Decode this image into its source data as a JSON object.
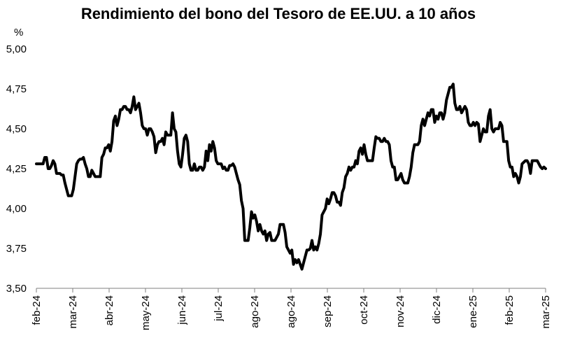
{
  "chart_data": {
    "type": "line",
    "title": "Rendimiento del bono del Tesoro de EE.UU. a 10 años",
    "ylabel": "%",
    "xlabel": "",
    "ylim": [
      3.5,
      5.0
    ],
    "yticks": [
      "3,50",
      "3,75",
      "4,00",
      "4,25",
      "4,50",
      "4,75",
      "5,00"
    ],
    "ytick_values": [
      3.5,
      3.75,
      4.0,
      4.25,
      4.5,
      4.75,
      5.0
    ],
    "x_tick_labels": [
      "feb-24",
      "mar-24",
      "abr-24",
      "may-24",
      "jun-24",
      "jul-24",
      "ago-24",
      "ago-24",
      "sep-24",
      "oct-24",
      "nov-24",
      "dic-24",
      "ene-25",
      "feb-25",
      "mar-25"
    ],
    "grid": false,
    "legend": "none",
    "line_color": "#000000",
    "series": [
      {
        "values": [
          4.28,
          4.28,
          4.28,
          4.28,
          4.28,
          4.32,
          4.32,
          4.25,
          4.25,
          4.27,
          4.3,
          4.28,
          4.22,
          4.22,
          4.22,
          4.21,
          4.21,
          4.16,
          4.12,
          4.08,
          4.08,
          4.08,
          4.12,
          4.2,
          4.28,
          4.3,
          4.31,
          4.31,
          4.32,
          4.28,
          4.25,
          4.2,
          4.2,
          4.24,
          4.22,
          4.2,
          4.2,
          4.2,
          4.2,
          4.32,
          4.34,
          4.38,
          4.38,
          4.4,
          4.36,
          4.42,
          4.55,
          4.58,
          4.52,
          4.56,
          4.62,
          4.62,
          4.64,
          4.64,
          4.62,
          4.62,
          4.6,
          4.64,
          4.7,
          4.62,
          4.64,
          4.66,
          4.6,
          4.52,
          4.5,
          4.5,
          4.46,
          4.5,
          4.5,
          4.48,
          4.45,
          4.35,
          4.4,
          4.42,
          4.42,
          4.44,
          4.4,
          4.48,
          4.46,
          4.46,
          4.46,
          4.6,
          4.5,
          4.48,
          4.36,
          4.28,
          4.26,
          4.34,
          4.44,
          4.46,
          4.42,
          4.28,
          4.24,
          4.24,
          4.28,
          4.24,
          4.24,
          4.26,
          4.26,
          4.24,
          4.26,
          4.36,
          4.3,
          4.4,
          4.36,
          4.42,
          4.38,
          4.3,
          4.28,
          4.28,
          4.28,
          4.25,
          4.26,
          4.24,
          4.24,
          4.27,
          4.27,
          4.28,
          4.26,
          4.22,
          4.18,
          4.15,
          4.05,
          4.0,
          3.8,
          3.8,
          3.8,
          3.88,
          3.98,
          3.94,
          3.96,
          3.92,
          3.86,
          3.9,
          3.86,
          3.84,
          3.86,
          3.8,
          3.84,
          3.85,
          3.8,
          3.8,
          3.8,
          3.82,
          3.84,
          3.9,
          3.9,
          3.9,
          3.85,
          3.76,
          3.74,
          3.72,
          3.74,
          3.65,
          3.68,
          3.66,
          3.68,
          3.65,
          3.62,
          3.66,
          3.7,
          3.74,
          3.74,
          3.75,
          3.8,
          3.74,
          3.76,
          3.74,
          3.78,
          3.84,
          3.96,
          3.98,
          4.0,
          4.06,
          4.03,
          4.06,
          4.1,
          4.1,
          4.08,
          4.04,
          4.04,
          4.02,
          4.1,
          4.13,
          4.2,
          4.22,
          4.26,
          4.24,
          4.26,
          4.26,
          4.3,
          4.28,
          4.36,
          4.38,
          4.34,
          4.4,
          4.34,
          4.3,
          4.3,
          4.3,
          4.3,
          4.38,
          4.45,
          4.44,
          4.44,
          4.42,
          4.42,
          4.44,
          4.42,
          4.42,
          4.4,
          4.3,
          4.26,
          4.26,
          4.18,
          4.18,
          4.2,
          4.22,
          4.18,
          4.16,
          4.16,
          4.16,
          4.2,
          4.26,
          4.35,
          4.4,
          4.4,
          4.4,
          4.42,
          4.52,
          4.56,
          4.52,
          4.56,
          4.6,
          4.58,
          4.62,
          4.62,
          4.54,
          4.58,
          4.56,
          4.6,
          4.6,
          4.56,
          4.6,
          4.68,
          4.72,
          4.76,
          4.76,
          4.78,
          4.66,
          4.62,
          4.62,
          4.64,
          4.6,
          4.62,
          4.64,
          4.62,
          4.54,
          4.52,
          4.52,
          4.54,
          4.52,
          4.54,
          4.53,
          4.42,
          4.46,
          4.5,
          4.48,
          4.48,
          4.58,
          4.62,
          4.5,
          4.48,
          4.5,
          4.5,
          4.5,
          4.54,
          4.52,
          4.42,
          4.42,
          4.42,
          4.3,
          4.26,
          4.26,
          4.2,
          4.22,
          4.2,
          4.16,
          4.2,
          4.28,
          4.29,
          4.3,
          4.3,
          4.28,
          4.22,
          4.3,
          4.3,
          4.3,
          4.3,
          4.28,
          4.26,
          4.25,
          4.26,
          4.25
        ]
      }
    ]
  }
}
